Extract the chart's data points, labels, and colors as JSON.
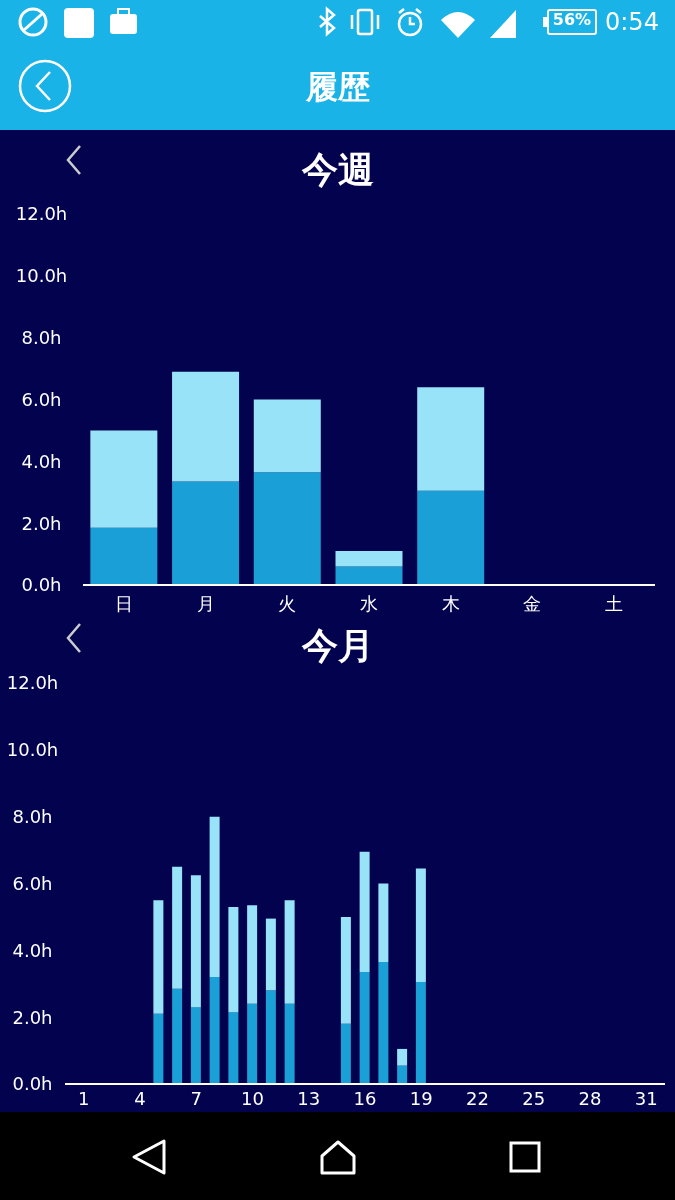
{
  "chart_data": [
    {
      "type": "other",
      "title": "履歴",
      "annotations": [
        "56%",
        "0:54"
      ]
    },
    {
      "type": "bar",
      "title": "今週",
      "stacked": true,
      "categories": [
        "日",
        "月",
        "火",
        "水",
        "木",
        "金",
        "土"
      ],
      "series": [
        {
          "color": "#1aa0d6",
          "values": [
            1.85,
            3.35,
            3.65,
            0.6,
            3.05,
            null,
            null
          ]
        },
        {
          "color": "#99e3f9",
          "values": [
            3.15,
            3.55,
            2.35,
            0.5,
            3.35,
            null,
            null
          ]
        }
      ],
      "ylim": [
        0,
        12
      ],
      "yticks": [
        {
          "value": 0,
          "label": "0.0h"
        },
        {
          "value": 2,
          "label": "2.0h"
        },
        {
          "value": 4,
          "label": "4.0h"
        },
        {
          "value": 6,
          "label": "6.0h"
        },
        {
          "value": 8,
          "label": "8.0h"
        },
        {
          "value": 10,
          "label": "10.0h"
        },
        {
          "value": 12,
          "label": "12.0h"
        }
      ]
    },
    {
      "type": "bar",
      "title": "今月",
      "stacked": true,
      "x": [
        5,
        6,
        7,
        8,
        9,
        10,
        11,
        12,
        15,
        16,
        17,
        18,
        19
      ],
      "series": [
        {
          "color": "#1aa0d6",
          "values": [
            2.1,
            2.85,
            2.3,
            3.2,
            2.15,
            2.4,
            2.8,
            2.4,
            1.8,
            3.35,
            3.65,
            0.55,
            3.05
          ]
        },
        {
          "color": "#99e3f9",
          "values": [
            3.4,
            3.65,
            3.95,
            4.8,
            3.15,
            2.95,
            2.15,
            3.1,
            3.2,
            3.6,
            2.35,
            0.5,
            3.4
          ]
        }
      ],
      "xlim": [
        0,
        32
      ],
      "xticks": [
        1,
        4,
        7,
        10,
        13,
        16,
        19,
        22,
        25,
        28,
        31
      ],
      "ylim": [
        0,
        12
      ],
      "yticks": [
        {
          "value": 0,
          "label": "0.0h"
        },
        {
          "value": 2,
          "label": "2.0h"
        },
        {
          "value": 4,
          "label": "4.0h"
        },
        {
          "value": 6,
          "label": "6.0h"
        },
        {
          "value": 8,
          "label": "8.0h"
        },
        {
          "value": 10,
          "label": "10.0h"
        },
        {
          "value": 12,
          "label": "12.0h"
        }
      ]
    }
  ]
}
